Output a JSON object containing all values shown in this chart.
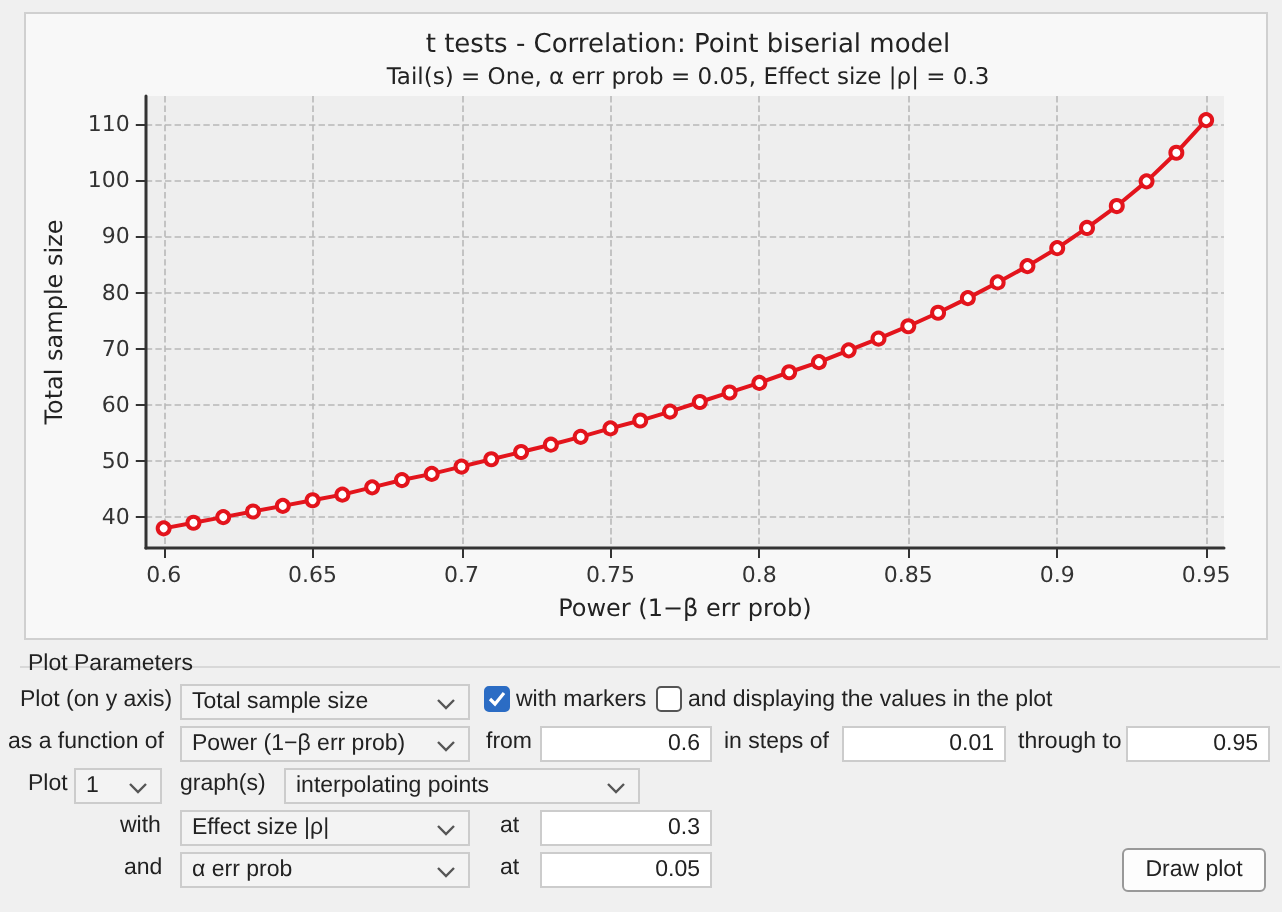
{
  "chart_data": {
    "type": "line",
    "title": "t tests - Correlation: Point biserial model",
    "subtitle": "Tail(s) = One, α err prob = 0.05, Effect size |ρ| = 0.3",
    "xlabel": "Power (1−β err prob)",
    "ylabel": "Total sample size",
    "x": [
      0.6,
      0.61,
      0.62,
      0.63,
      0.64,
      0.65,
      0.66,
      0.67,
      0.68,
      0.69,
      0.7,
      0.71,
      0.72,
      0.73,
      0.74,
      0.75,
      0.76,
      0.77,
      0.78,
      0.79,
      0.8,
      0.81,
      0.82,
      0.83,
      0.84,
      0.85,
      0.86,
      0.87,
      0.88,
      0.89,
      0.9,
      0.91,
      0.92,
      0.93,
      0.94,
      0.95
    ],
    "series": [
      {
        "color": "#e3141c",
        "values": [
          38,
          39,
          40,
          41,
          42,
          43,
          44,
          45.3,
          46.6,
          47.7,
          49,
          50.3,
          51.6,
          52.9,
          54.3,
          55.8,
          57.2,
          58.8,
          60.5,
          62.2,
          63.9,
          65.8,
          67.6,
          69.7,
          71.8,
          74,
          76.4,
          79,
          81.8,
          84.7,
          87.9,
          91.5,
          95.4,
          99.8,
          104.9,
          110.7
        ]
      }
    ],
    "xlim": [
      0.594,
      0.956
    ],
    "xticks": [
      0.6,
      0.65,
      0.7,
      0.75,
      0.8,
      0.85,
      0.9,
      0.95
    ],
    "ylim": [
      34.5,
      115
    ],
    "yticks": [
      40,
      50,
      60,
      70,
      80,
      90,
      100,
      110
    ],
    "grid": true,
    "marker": "circle",
    "line_style": "solid",
    "annotations": [
      "Plot Parameters",
      "Plot (on y axis)",
      "Total sample size",
      "with markers",
      "and displaying the values in the plot",
      "as a function of",
      "Power (1−β err prob)",
      "from",
      "0.6",
      "in steps of",
      "0.01",
      "through to",
      "0.95",
      "Plot",
      "1",
      "graph(s)",
      "interpolating points",
      "with",
      "Effect size |ρ|",
      "at",
      "0.3",
      "and",
      "α err prob",
      "at",
      "0.05",
      "Draw plot"
    ]
  }
}
